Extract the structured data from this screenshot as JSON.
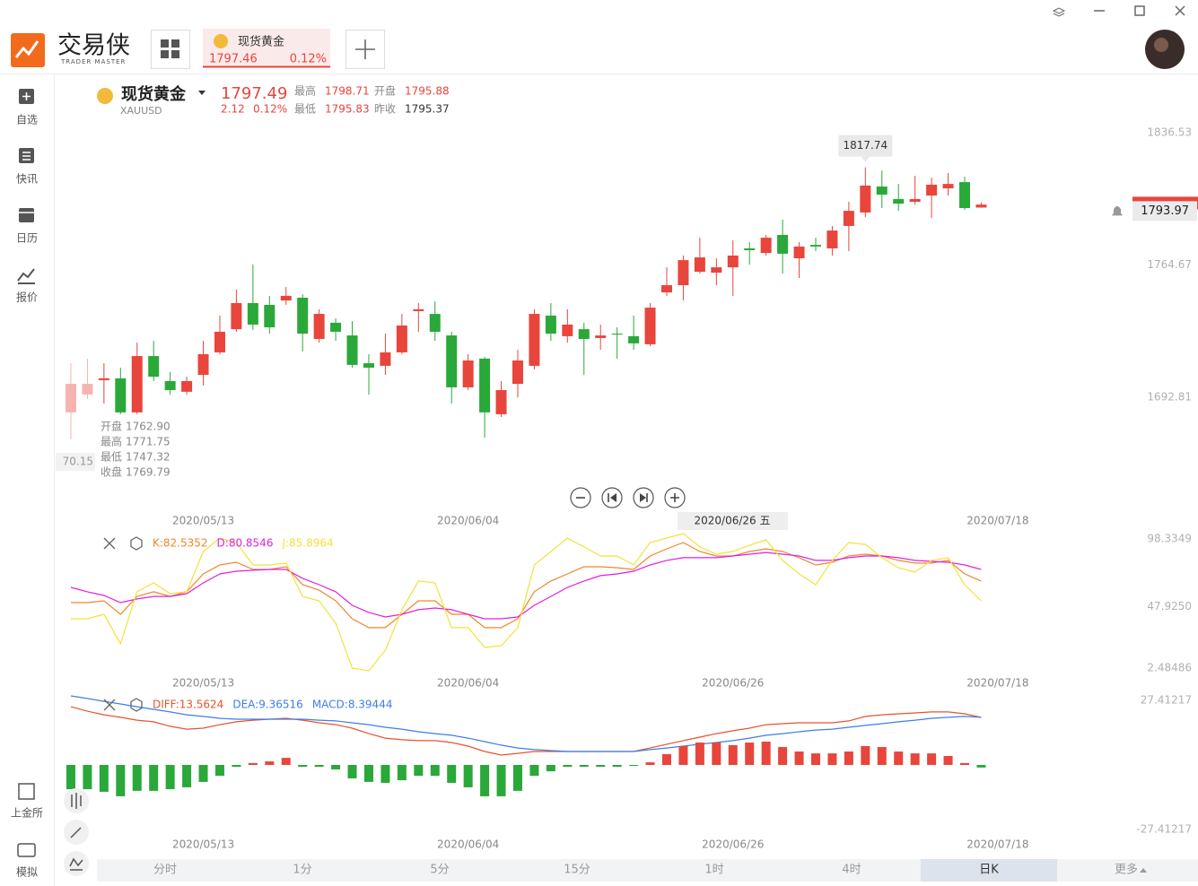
{
  "app": {
    "brand": "交易侠",
    "brand_sub": "TRADER MASTER"
  },
  "tab": {
    "name": "现货黄金",
    "price": "1797.46",
    "change": "0.12%"
  },
  "sidebar": {
    "items": [
      "自选",
      "快讯",
      "日历",
      "报价"
    ],
    "bottom": [
      "上金所",
      "模拟"
    ]
  },
  "quote": {
    "name": "现货黄金",
    "symbol": "XAUUSD",
    "price": "1797.49",
    "change": "2.12",
    "change_pct": "0.12%",
    "high_label": "最高",
    "high": "1798.71",
    "open_label": "开盘",
    "open": "1795.88",
    "low_label": "最低",
    "low": "1795.83",
    "prev_label": "昨收",
    "prev": "1795.37"
  },
  "tooltip": {
    "open_label": "开盘",
    "open": "1762.90",
    "high_label": "最高",
    "high": "1771.75",
    "low_label": "最低",
    "low": "1747.32",
    "close_label": "收盘",
    "close": "1769.79"
  },
  "crosshair": {
    "x_label": "2020/06/26 五",
    "y_label": "70.15"
  },
  "chart_data": [
    {
      "type": "candlestick",
      "up_color": "#e8453c",
      "down_color": "#2aa83a",
      "xlim": [
        -0.92,
        63
      ],
      "ylim": [
        1643.12,
        1864.79
      ],
      "yticks": [
        1836.53,
        1764.67,
        1692.81
      ],
      "xticks": [
        {
          "value": 8,
          "label": "2020/05/13"
        },
        {
          "value": 24,
          "label": "2020/06/04"
        },
        {
          "value": 56,
          "label": "2020/07/18"
        }
      ],
      "price_line": 1793.97,
      "open": [
        1684.6,
        1694.3,
        1702.1,
        1703.1,
        1684.6,
        1715.2,
        1701.6,
        1695.8,
        1705.0,
        1717.2,
        1729.8,
        1744.0,
        1743.0,
        1745.4,
        1746.9,
        1724.5,
        1733.3,
        1726.4,
        1711.3,
        1709.9,
        1717.2,
        1739.6,
        1738.1,
        1726.4,
        1698.2,
        1713.8,
        1683.6,
        1700.1,
        1709.9,
        1737.2,
        1726.0,
        1729.8,
        1725.0,
        1727.4,
        1726.0,
        1721.6,
        1749.8,
        1753.7,
        1761.0,
        1760.5,
        1763.4,
        1773.7,
        1771.2,
        1781.0,
        1768.3,
        1775.6,
        1773.7,
        1785.9,
        1793.2,
        1807.3,
        1800.5,
        1799.0,
        1802.4,
        1806.3,
        1809.7,
        1795.88
      ],
      "high": [
        1711.3,
        1713.8,
        1711.3,
        1708.9,
        1722.5,
        1723.5,
        1706.5,
        1704.0,
        1723.5,
        1737.2,
        1751.3,
        1764.9,
        1747.9,
        1752.7,
        1748.8,
        1740.6,
        1735.7,
        1734.2,
        1716.2,
        1727.4,
        1738.1,
        1744.0,
        1744.9,
        1728.4,
        1716.2,
        1714.7,
        1701.6,
        1718.6,
        1740.6,
        1744.0,
        1740.6,
        1733.3,
        1732.3,
        1730.8,
        1737.2,
        1744.0,
        1763.4,
        1769.8,
        1779.5,
        1768.3,
        1778.1,
        1777.1,
        1781.0,
        1789.3,
        1777.1,
        1779.5,
        1785.9,
        1799.0,
        1817.74,
        1816.0,
        1808.7,
        1813.1,
        1812.1,
        1814.6,
        1812.6,
        1798.71
      ],
      "low": [
        1669.9,
        1691.9,
        1689.4,
        1683.6,
        1683.6,
        1701.6,
        1694.3,
        1694.3,
        1699.2,
        1716.2,
        1728.4,
        1729.4,
        1727.4,
        1743.0,
        1717.7,
        1722.5,
        1723.5,
        1708.9,
        1694.3,
        1705.0,
        1716.2,
        1728.4,
        1723.5,
        1689.4,
        1696.7,
        1670.9,
        1682.1,
        1692.8,
        1707.9,
        1723.5,
        1722.5,
        1705.0,
        1718.6,
        1713.8,
        1718.6,
        1720.6,
        1747.9,
        1745.4,
        1760.0,
        1753.7,
        1747.9,
        1764.9,
        1769.8,
        1760.0,
        1757.6,
        1772.2,
        1769.8,
        1772.2,
        1790.7,
        1795.6,
        1794.1,
        1797.5,
        1790.2,
        1802.4,
        1794.6,
        1795.83
      ],
      "close": [
        1700.1,
        1700.1,
        1703.1,
        1684.6,
        1715.2,
        1704.0,
        1696.7,
        1701.6,
        1716.2,
        1728.4,
        1744.0,
        1732.3,
        1730.8,
        1747.9,
        1727.4,
        1738.1,
        1728.4,
        1710.4,
        1708.9,
        1717.2,
        1731.8,
        1740.6,
        1728.4,
        1698.2,
        1712.8,
        1684.6,
        1696.7,
        1712.8,
        1738.1,
        1727.4,
        1732.3,
        1724.5,
        1726.4,
        1726.9,
        1722.1,
        1741.5,
        1753.7,
        1767.3,
        1768.8,
        1763.4,
        1769.8,
        1772.7,
        1779.5,
        1770.8,
        1774.7,
        1774.7,
        1783.4,
        1794.1,
        1807.8,
        1802.9,
        1798.0,
        1800.5,
        1808.3,
        1808.7,
        1795.6,
        1797.49
      ]
    },
    {
      "type": "line",
      "xlim": [
        -0.92,
        63
      ],
      "ylim": [
        2.48486,
        98.3349
      ],
      "yticks": [
        98.3349,
        {
          "value": 47.925,
          "label": "47.9250"
        },
        2.48486
      ],
      "xticks": [
        {
          "value": 8,
          "label": "2020/05/13"
        },
        {
          "value": 24,
          "label": "2020/06/04"
        },
        {
          "value": 40,
          "label": "2020/06/26"
        },
        {
          "value": 56,
          "label": "2020/07/18"
        }
      ],
      "series": [
        {
          "name": "K:82.5352",
          "color": "#f0862a",
          "values": [
            51.1,
            51.1,
            52.4,
            42.4,
            55.7,
            59.1,
            55.7,
            59.1,
            72.4,
            79.0,
            81.0,
            75.7,
            75.7,
            77.7,
            64.4,
            60.4,
            52.4,
            39.1,
            32.5,
            32.5,
            42.4,
            52.4,
            52.4,
            42.4,
            42.4,
            32.5,
            32.5,
            39.1,
            59.1,
            67.1,
            72.4,
            77.7,
            77.7,
            77.0,
            75.7,
            85.7,
            91.0,
            95.7,
            89.0,
            85.7,
            85.7,
            89.0,
            91.0,
            89.0,
            84.4,
            79.0,
            81.0,
            85.7,
            87.0,
            85.7,
            82.4,
            80.4,
            80.4,
            82.4,
            72.4,
            67.1
          ]
        },
        {
          "name": "D:80.8546",
          "color": "#e020e0",
          "values": [
            62.4,
            59.1,
            56.4,
            51.1,
            53.8,
            55.7,
            55.7,
            57.7,
            65.7,
            72.4,
            74.4,
            75.1,
            75.7,
            75.7,
            69.1,
            64.4,
            59.1,
            49.1,
            43.8,
            40.4,
            42.4,
            45.8,
            47.1,
            45.8,
            42.4,
            39.1,
            39.1,
            40.4,
            49.1,
            55.7,
            62.4,
            67.1,
            71.1,
            72.4,
            74.4,
            79.0,
            82.4,
            84.4,
            84.4,
            84.4,
            85.7,
            87.0,
            88.3,
            87.0,
            85.7,
            82.4,
            82.4,
            84.4,
            85.7,
            85.7,
            84.4,
            82.4,
            81.7,
            81.0,
            79.0,
            75.7
          ]
        },
        {
          "name": "J:85.8964",
          "color": "#f2e23a",
          "values": [
            39.1,
            39.1,
            42.4,
            20.5,
            59.1,
            65.7,
            57.7,
            59.1,
            89.0,
            99.0,
            95.7,
            79.0,
            79.0,
            80.4,
            55.7,
            52.4,
            35.8,
            2.5,
            0.5,
            15.8,
            45.8,
            67.1,
            65.7,
            32.5,
            32.5,
            17.8,
            19.1,
            32.5,
            79.0,
            89.0,
            99.0,
            92.4,
            85.7,
            85.7,
            79.0,
            95.7,
            99.0,
            102.3,
            92.4,
            87.0,
            89.0,
            93.7,
            97.7,
            82.4,
            72.4,
            64.4,
            82.4,
            95.7,
            94.3,
            84.4,
            77.0,
            73.7,
            82.4,
            84.4,
            64.4,
            52.4
          ]
        }
      ]
    },
    {
      "type": "macd",
      "xlim": [
        -0.92,
        63
      ],
      "ylim": [
        -27.41217,
        27.41217
      ],
      "yticks": [
        27.41217,
        -27.41217
      ],
      "xticks": [
        {
          "value": 8,
          "label": "2020/05/13"
        },
        {
          "value": 24,
          "label": "2020/06/04"
        },
        {
          "value": 40,
          "label": "2020/06/26"
        },
        {
          "value": 56,
          "label": "2020/07/18"
        }
      ],
      "series": [
        {
          "name": "DIFF:13.5624",
          "color": "#e5542d",
          "values": [
            24.7,
            22.8,
            21.3,
            20.2,
            19.0,
            18.3,
            16.4,
            15.2,
            15.6,
            17.1,
            18.3,
            19.0,
            19.4,
            19.8,
            19.0,
            17.9,
            17.1,
            15.6,
            13.3,
            11.4,
            10.7,
            10.3,
            10.3,
            9.5,
            8.0,
            5.7,
            4.2,
            4.9,
            5.7,
            5.7,
            5.7,
            5.7,
            5.7,
            5.7,
            5.7,
            7.2,
            8.8,
            10.3,
            11.8,
            13.3,
            14.5,
            15.6,
            17.1,
            17.5,
            17.9,
            17.9,
            17.9,
            18.7,
            20.6,
            21.3,
            21.7,
            22.1,
            22.5,
            22.5,
            21.7,
            20.2
          ]
        },
        {
          "name": "DEA:9.36516",
          "color": "#3d7ee8",
          "values": [
            29.3,
            28.2,
            27.0,
            25.9,
            24.7,
            23.6,
            22.5,
            21.3,
            20.6,
            19.8,
            19.4,
            19.4,
            19.4,
            19.4,
            19.4,
            19.0,
            18.7,
            17.9,
            17.1,
            16.0,
            15.2,
            14.1,
            13.3,
            12.6,
            11.4,
            9.9,
            8.4,
            7.2,
            6.5,
            6.1,
            5.7,
            5.7,
            5.7,
            5.7,
            5.7,
            6.5,
            7.2,
            8.0,
            8.8,
            9.5,
            10.3,
            11.4,
            12.6,
            13.3,
            14.1,
            14.8,
            15.2,
            16.0,
            16.8,
            17.5,
            18.3,
            19.0,
            19.8,
            20.2,
            20.6,
            20.2
          ]
        },
        {
          "name": "MACD:8.39444",
          "color": "#3d7ee8",
          "up_color": "#e8453c",
          "down_color": "#2aa83a",
          "values": [
            -10.3,
            -10.3,
            -11.4,
            -13.3,
            -11.0,
            -11.0,
            -10.3,
            -9.5,
            -7.2,
            -4.6,
            -0.8,
            0.8,
            1.5,
            3.0,
            -0.8,
            -0.8,
            -1.9,
            -5.7,
            -7.2,
            -7.6,
            -6.5,
            -4.6,
            -4.6,
            -7.6,
            -9.5,
            -13.3,
            -13.3,
            -11.0,
            -4.6,
            -2.7,
            -0.8,
            -0.8,
            -0.8,
            -0.8,
            -0.4,
            1.1,
            4.6,
            8.0,
            9.5,
            9.5,
            8.4,
            9.5,
            9.9,
            7.6,
            5.7,
            4.9,
            4.9,
            5.7,
            8.0,
            7.6,
            5.7,
            4.9,
            4.9,
            3.8,
            0.8,
            -1.1
          ]
        }
      ]
    }
  ],
  "periods": {
    "items": [
      "分时",
      "1分",
      "5分",
      "15分",
      "1时",
      "4时",
      "日K",
      "更多"
    ],
    "active": 6
  }
}
